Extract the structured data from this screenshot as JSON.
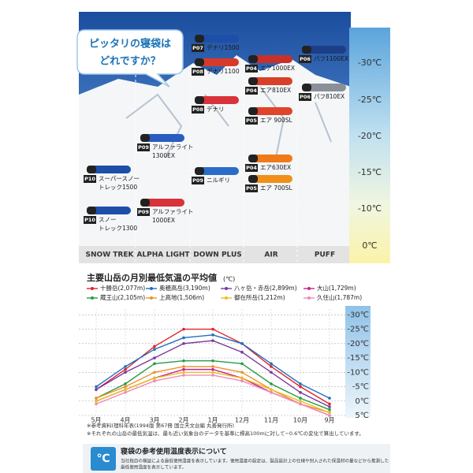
{
  "panel": {
    "bubble": [
      "ピッタリの寝袋は",
      "どれですか？"
    ],
    "columns": [
      {
        "name": "SNOW TREK",
        "products": [
          {
            "code": "P10",
            "name": [
              "スーパースノー",
              "トレック1500"
            ]
          },
          {
            "code": "P10",
            "name": [
              "スノー",
              "トレック1300"
            ]
          }
        ]
      },
      {
        "name": "ALPHA LIGHT",
        "products": [
          {
            "code": "P09",
            "name": [
              "アルファライト",
              "1300EX"
            ]
          },
          {
            "code": "P09",
            "name": [
              "アルファライト",
              "1000EX"
            ]
          }
        ]
      },
      {
        "name": "DOWN PLUS",
        "products": [
          {
            "code": "P07",
            "name": [
              "デナリ1500"
            ]
          },
          {
            "code": "P08",
            "name": [
              "デナリ1100"
            ]
          },
          {
            "code": "P08",
            "name": [
              "デナリ"
            ]
          },
          {
            "code": "P09",
            "name": [
              "ニルギリ"
            ]
          }
        ]
      },
      {
        "name": "AIR",
        "products": [
          {
            "code": "P04",
            "name": [
              "エア1000EX"
            ]
          },
          {
            "code": "P04",
            "name": [
              "エア810EX"
            ]
          },
          {
            "code": "P05",
            "name": [
              "エア 900SL"
            ]
          },
          {
            "code": "P04",
            "name": [
              "エア630EX"
            ]
          },
          {
            "code": "P05",
            "name": [
              "エア 700SL"
            ]
          }
        ]
      },
      {
        "name": "PUFF",
        "products": [
          {
            "code": "P06",
            "name": [
              "パフ1100EX"
            ]
          },
          {
            "code": "P06",
            "name": [
              "パフ810EX"
            ]
          }
        ]
      }
    ],
    "scale": [
      "-30℃",
      "-25℃",
      "-20℃",
      "-15℃",
      "-10℃",
      "0℃"
    ]
  },
  "chart_data": {
    "type": "line",
    "title": "主要山岳の月別最低気温の平均値",
    "unit": "(℃)",
    "categories": [
      "5月",
      "4月",
      "3月",
      "2月",
      "1月",
      "12月",
      "11月",
      "10月",
      "9月"
    ],
    "series": [
      {
        "name": "十勝岳(2,077m)",
        "color": "#e0242a",
        "values": [
          -4,
          -11,
          -19,
          -25,
          -25,
          -20,
          -12,
          -5,
          1
        ]
      },
      {
        "name": "奥穂高岳(3,190m)",
        "color": "#1f6fc0",
        "values": [
          -5,
          -12,
          -18,
          -22,
          -23,
          -20,
          -13,
          -6,
          -1
        ]
      },
      {
        "name": "八ヶ岳・赤岳(2,899m)",
        "color": "#7b3a9a",
        "values": [
          -4,
          -10,
          -15,
          -20,
          -21,
          -17,
          -10,
          -3,
          2
        ]
      },
      {
        "name": "大山(1,729m)",
        "color": "#c8238c",
        "values": [
          0,
          -4,
          -8,
          -11,
          -11,
          -8,
          -3,
          1,
          5
        ]
      },
      {
        "name": "蔵王山(2,105m)",
        "color": "#2a9a48",
        "values": [
          -1,
          -6,
          -13,
          -14,
          -14,
          -13,
          -6,
          -1,
          3
        ]
      },
      {
        "name": "上高地(1,506m)",
        "color": "#f0902a",
        "values": [
          -1,
          -5,
          -10,
          -12,
          -12,
          -10,
          -4,
          1,
          4
        ]
      },
      {
        "name": "御在所岳(1,212m)",
        "color": "#e8c020",
        "values": [
          0,
          -4,
          -8,
          -10,
          -10,
          -8,
          -4,
          0,
          4
        ]
      },
      {
        "name": "久住山(1,787m)",
        "color": "#f08ab8",
        "values": [
          1,
          -3,
          -7,
          -9,
          -9,
          -7,
          -3,
          1,
          5
        ]
      }
    ],
    "ylim": [
      5,
      -32
    ],
    "yticks": [
      {
        "value": -30,
        "label": "-30℃"
      },
      {
        "value": -25,
        "label": "-25℃"
      },
      {
        "value": -20,
        "label": "-20℃"
      },
      {
        "value": -15,
        "label": "-15℃"
      },
      {
        "value": -10,
        "label": "-10℃"
      },
      {
        "value": -5,
        "label": "-5℃"
      },
      {
        "value": 0,
        "label": "0℃"
      },
      {
        "value": 5,
        "label": "5℃"
      }
    ],
    "grid": true
  },
  "notes": [
    "※参考資料(理科年表(1994版 第67冊 国立天文台編 丸善発行所)",
    "※それぞれの山岳の最低気温は、最も近い気象台のデータを基準に標高100mに対して−0.6℃の変化で算出しています。"
  ],
  "info": {
    "icon": "℃",
    "title": "寝袋の参考使用温度表示について",
    "text": [
      "当社独自の検証による最低使用温度を表示しています。使用温度の設定は、製品設計上の仕様や封入された保温材の量などから推測した",
      "最低使用温度を表示しています。"
    ]
  }
}
